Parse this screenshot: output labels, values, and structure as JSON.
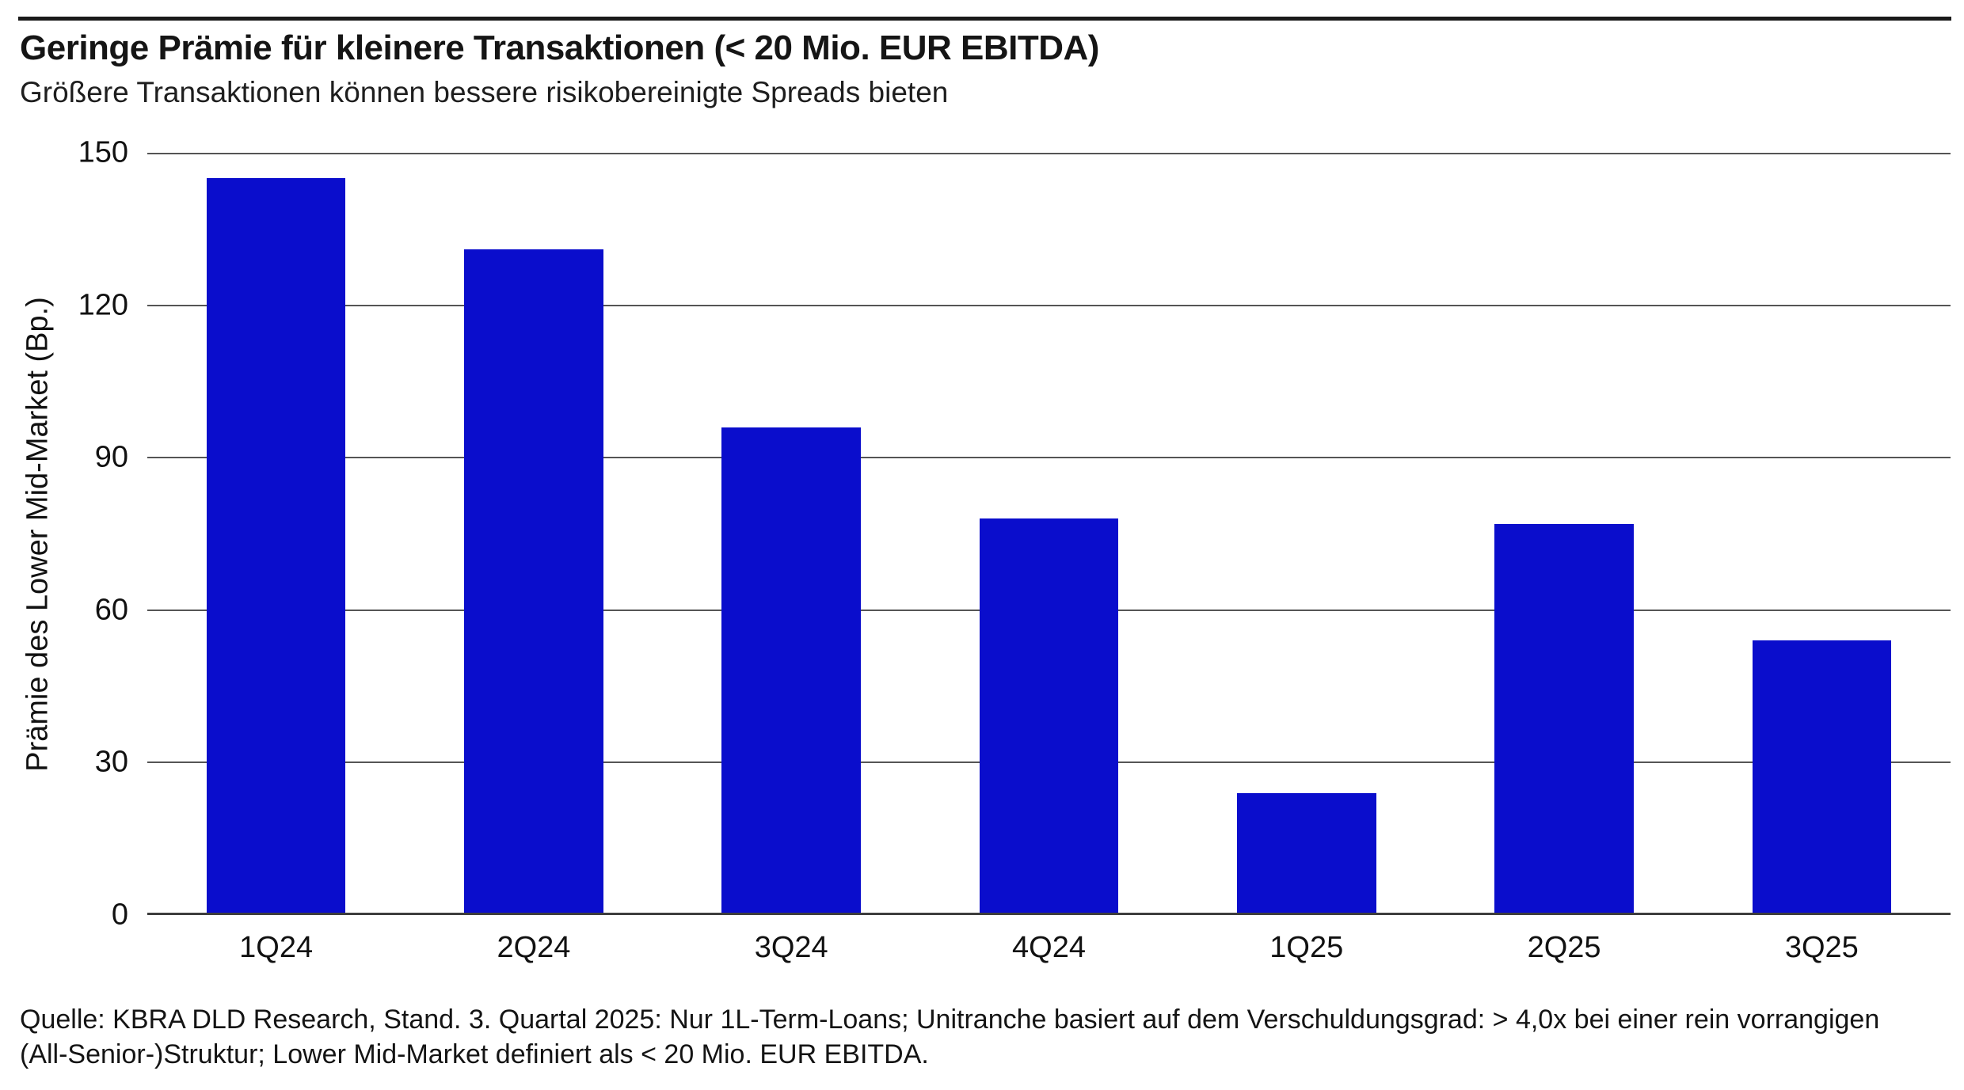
{
  "header": {
    "title": "Geringe Prämie für kleinere Transaktionen (< 20 Mio. EUR EBITDA)",
    "subtitle": "Größere Transaktionen können bessere risikobereinigte Spreads bieten"
  },
  "chart_data": {
    "type": "bar",
    "title": "Geringe Prämie für kleinere Transaktionen (< 20 Mio. EUR EBITDA)",
    "subtitle": "Größere Transaktionen können bessere risikobereinigte Spreads bieten",
    "categories": [
      "1Q24",
      "2Q24",
      "3Q24",
      "4Q24",
      "1Q25",
      "2Q25",
      "3Q25"
    ],
    "values": [
      145,
      131,
      96,
      78,
      24,
      77,
      54
    ],
    "xlabel": "",
    "ylabel": "Prämie des Lower Mid-Market (Bp.)",
    "ylim": [
      0,
      150
    ],
    "yticks": [
      150,
      120,
      90,
      60,
      30,
      0
    ],
    "grid": true,
    "legend_position": "none",
    "bar_color": "#0A0DCC"
  },
  "footer": {
    "source_line1": "Quelle: KBRA DLD Research, Stand. 3. Quartal 2025: Nur 1L-Term-Loans; Unitranche basiert auf dem Verschuldungsgrad: > 4,0x bei einer rein vorrangigen",
    "source_line2": "(All-Senior-)Struktur; Lower Mid-Market definiert als < 20 Mio. EUR EBITDA."
  },
  "colors": {
    "bar": "#0A0DCC",
    "gridline": "#555555",
    "baseline": "#3d3d3d",
    "top_rule": "#1a1a1a",
    "text": "#111111"
  }
}
